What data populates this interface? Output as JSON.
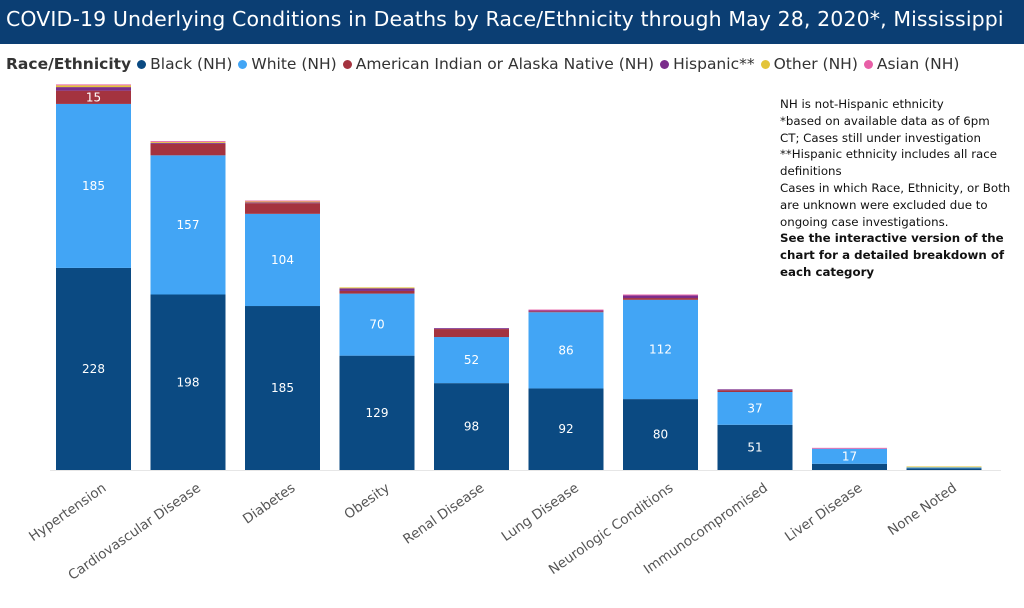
{
  "title": "COVID-19 Underlying Conditions in Deaths by Race/Ethnicity through May 28, 2020*, Mississippi",
  "colors": {
    "title_bar": "#0b3e73"
  },
  "legend": {
    "title": "Race/Ethnicity",
    "items": [
      {
        "label": "Black (NH)",
        "color": "#0b4a82"
      },
      {
        "label": "White (NH)",
        "color": "#42a5f5"
      },
      {
        "label": "American Indian or Alaska Native (NH)",
        "color": "#a4333f"
      },
      {
        "label": "Hispanic**",
        "color": "#7b2d8b"
      },
      {
        "label": "Other (NH)",
        "color": "#e3c43a"
      },
      {
        "label": "Asian (NH)",
        "color": "#e85fa7"
      }
    ]
  },
  "notes": {
    "line1": "NH is not-Hispanic ethnicity",
    "line2": "*based on available data as of 6pm CT; Cases still under investigation",
    "line3": "**Hispanic ethnicity includes all race definitions",
    "line4": "Cases in which Race, Ethnicity, or Both are unknown were excluded due to ongoing case investigations.",
    "line5": "See the interactive version of the chart for a detailed breakdown of each category"
  },
  "chart_data": {
    "type": "bar",
    "stacked": true,
    "categories": [
      "Hypertension",
      "Cardiovascular Disease",
      "Diabetes",
      "Obesity",
      "Renal Disease",
      "Lung Disease",
      "Neurologic Conditions",
      "Immunocompromised",
      "Liver Disease",
      "None Noted"
    ],
    "series": [
      {
        "name": "Black (NH)",
        "color": "#0b4a82",
        "values": [
          228,
          198,
          185,
          129,
          98,
          92,
          80,
          51,
          7,
          2
        ],
        "labels": [
          "228",
          "198",
          "185",
          "129",
          "98",
          "92",
          "80",
          "51",
          "",
          ""
        ]
      },
      {
        "name": "White (NH)",
        "color": "#42a5f5",
        "values": [
          185,
          157,
          104,
          70,
          52,
          86,
          112,
          37,
          17,
          1
        ],
        "labels": [
          "185",
          "157",
          "104",
          "70",
          "52",
          "86",
          "112",
          "37",
          "17",
          ""
        ]
      },
      {
        "name": "American Indian or Alaska Native (NH)",
        "color": "#a4333f",
        "values": [
          15,
          13,
          12,
          3,
          9,
          1,
          2,
          2,
          0,
          0
        ],
        "labels": [
          "15",
          "",
          "",
          "",
          "",
          "",
          "",
          "",
          "",
          ""
        ]
      },
      {
        "name": "Hispanic**",
        "color": "#7b2d8b",
        "values": [
          4,
          1,
          1,
          3,
          1,
          1,
          3,
          1,
          0,
          0
        ],
        "labels": [
          "",
          "",
          "",
          "",
          "",
          "",
          "",
          "",
          "",
          ""
        ]
      },
      {
        "name": "Other (NH)",
        "color": "#e3c43a",
        "values": [
          2,
          1,
          1,
          1,
          0,
          0,
          0,
          0,
          0,
          1
        ],
        "labels": [
          "",
          "",
          "",
          "",
          "",
          "",
          "",
          "",
          "",
          ""
        ]
      },
      {
        "name": "Asian (NH)",
        "color": "#e85fa7",
        "values": [
          1,
          1,
          1,
          0,
          0,
          1,
          1,
          0,
          1,
          0
        ],
        "labels": [
          "",
          "",
          "",
          "",
          "",
          "",
          "",
          "",
          "",
          ""
        ]
      }
    ],
    "ylim": [
      0,
      440
    ],
    "grid": false
  }
}
